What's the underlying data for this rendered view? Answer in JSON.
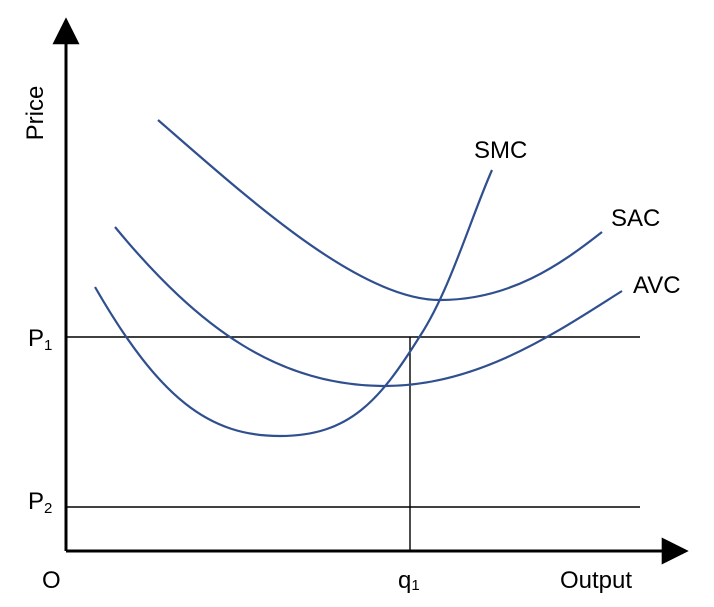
{
  "axes": {
    "y_label": "Price",
    "x_label": "Output",
    "origin_label": "O"
  },
  "price_levels": [
    {
      "main": "P",
      "sub": "1"
    },
    {
      "main": "P",
      "sub": "2"
    }
  ],
  "quantity_mark": {
    "main": "q",
    "sub": "1"
  },
  "curves": [
    {
      "label": "SMC"
    },
    {
      "label": "SAC"
    },
    {
      "label": "AVC"
    }
  ],
  "colors": {
    "curve": "#2f4f8f",
    "axis": "#000000",
    "guide_lines": "#000000"
  }
}
